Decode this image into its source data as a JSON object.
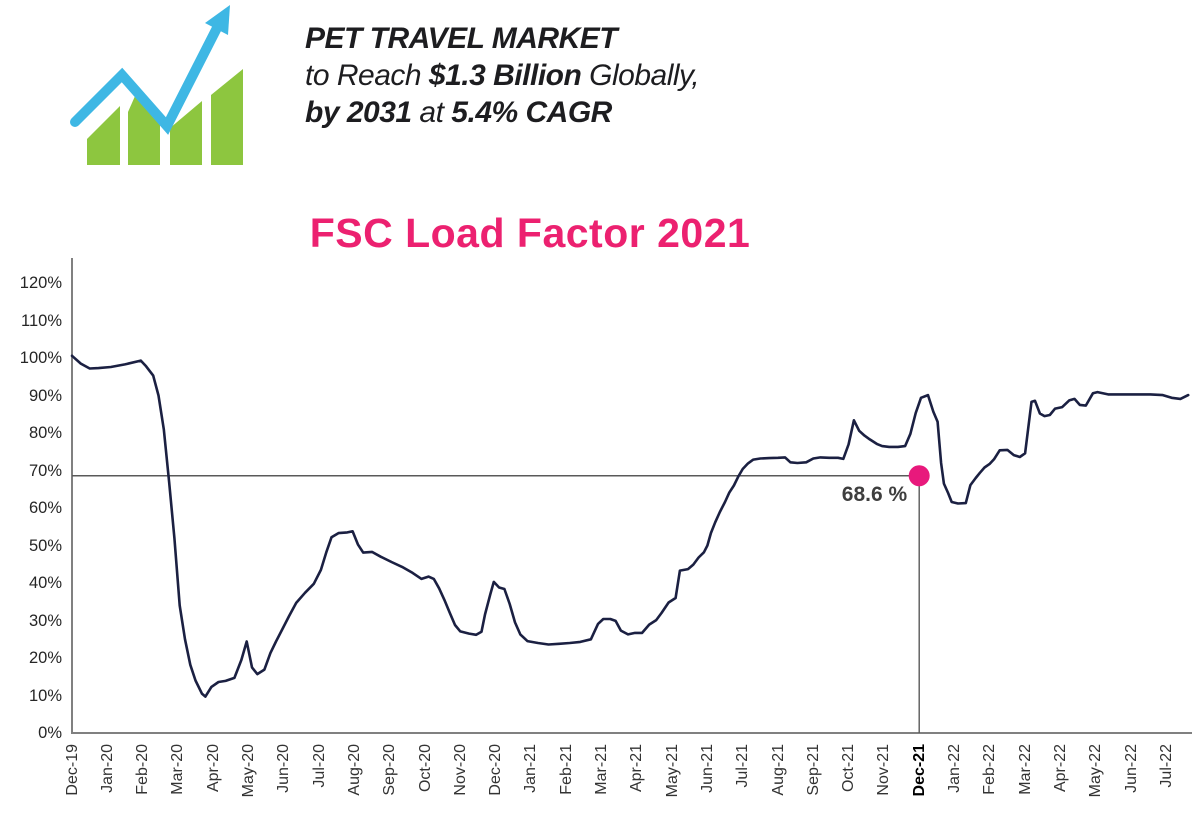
{
  "header": {
    "title_line1": "PET TRAVEL MARKET",
    "line2": {
      "pre": "to Reach ",
      "bold": "$1.3 Billion",
      "post": " Globally,"
    },
    "line3": {
      "bold1": "by 2031",
      "mid": " at ",
      "bold2": "5.4% CAGR"
    },
    "logo": {
      "bar_color": "#8dc63f",
      "arrow_color": "#3eb7e4"
    }
  },
  "chart": {
    "title": "FSC Load Factor 2021",
    "title_color": "#ec2170",
    "line_color": "#1b2042",
    "axis_color": "#808080",
    "ref_line_color": "#595959",
    "marker_color": "#e8197c"
  },
  "chart_data": {
    "type": "line",
    "title": "FSC Load Factor 2021",
    "ylim": [
      0,
      120
    ],
    "grid": "off",
    "y_ticks": [
      "0%",
      "10%",
      "20%",
      "30%",
      "40%",
      "50%",
      "60%",
      "70%",
      "80%",
      "90%",
      "100%",
      "110%",
      "120%"
    ],
    "x_labels": [
      "Dec-19",
      "Jan-20",
      "Feb-20",
      "Mar-20",
      "Apr-20",
      "May-20",
      "Jun-20",
      "Jul-20",
      "Aug-20",
      "Sep-20",
      "Oct-20",
      "Nov-20",
      "Dec-20",
      "Jan-21",
      "Feb-21",
      "Mar-21",
      "Apr-21",
      "May-21",
      "Jun-21",
      "Jul-21",
      "Aug-21",
      "Sep-21",
      "Oct-21",
      "Nov-21",
      "Dec-21",
      "Jan-22",
      "Feb-22",
      "Mar-22",
      "Apr-22",
      "May-22",
      "Jun-22",
      "Jul-22"
    ],
    "bold_x_label": "Dec-21",
    "annotation": {
      "x_label": "Dec-21",
      "value": 68.6,
      "text": "68.6 %"
    },
    "series": [
      {
        "name": "FSC Load Factor",
        "x_unit": "months since Dec-19",
        "y_unit": "percent",
        "points": [
          [
            0,
            100.6
          ],
          [
            0.25,
            98.5
          ],
          [
            0.5,
            97.2
          ],
          [
            0.75,
            97.3
          ],
          [
            1.1,
            97.6
          ],
          [
            1.5,
            98.3
          ],
          [
            1.95,
            99.3
          ],
          [
            2.1,
            97.8
          ],
          [
            2.3,
            95.3
          ],
          [
            2.45,
            90
          ],
          [
            2.6,
            81
          ],
          [
            2.75,
            67
          ],
          [
            2.9,
            52
          ],
          [
            3.05,
            34
          ],
          [
            3.2,
            25
          ],
          [
            3.35,
            18.2
          ],
          [
            3.5,
            14
          ],
          [
            3.68,
            10.5
          ],
          [
            3.78,
            9.7
          ],
          [
            3.95,
            12.3
          ],
          [
            4.15,
            13.6
          ],
          [
            4.35,
            13.9
          ],
          [
            4.6,
            14.7
          ],
          [
            4.8,
            19.5
          ],
          [
            4.95,
            24.4
          ],
          [
            5.1,
            17.5
          ],
          [
            5.25,
            15.7
          ],
          [
            5.45,
            16.9
          ],
          [
            5.62,
            21.3
          ],
          [
            5.78,
            24.4
          ],
          [
            5.95,
            27.5
          ],
          [
            6.15,
            31.2
          ],
          [
            6.35,
            34.7
          ],
          [
            6.6,
            37.4
          ],
          [
            6.85,
            39.8
          ],
          [
            7.05,
            43.5
          ],
          [
            7.2,
            48.1
          ],
          [
            7.35,
            52.2
          ],
          [
            7.55,
            53.3
          ],
          [
            7.8,
            53.5
          ],
          [
            7.95,
            53.8
          ],
          [
            8.1,
            50.3
          ],
          [
            8.25,
            48.1
          ],
          [
            8.5,
            48.3
          ],
          [
            8.75,
            47
          ],
          [
            9.05,
            45.6
          ],
          [
            9.35,
            44.3
          ],
          [
            9.65,
            42.7
          ],
          [
            9.9,
            41.1
          ],
          [
            10.1,
            41.7
          ],
          [
            10.25,
            41.1
          ],
          [
            10.4,
            38.6
          ],
          [
            10.55,
            35.5
          ],
          [
            10.7,
            32.1
          ],
          [
            10.85,
            28.8
          ],
          [
            11,
            27.1
          ],
          [
            11.25,
            26.5
          ],
          [
            11.45,
            26.2
          ],
          [
            11.6,
            27
          ],
          [
            11.7,
            31.6
          ],
          [
            11.85,
            37
          ],
          [
            11.95,
            40.3
          ],
          [
            12.1,
            38.8
          ],
          [
            12.25,
            38.4
          ],
          [
            12.4,
            34.4
          ],
          [
            12.55,
            29.5
          ],
          [
            12.7,
            26.3
          ],
          [
            12.9,
            24.5
          ],
          [
            13.2,
            24
          ],
          [
            13.5,
            23.6
          ],
          [
            13.8,
            23.8
          ],
          [
            14.1,
            24
          ],
          [
            14.4,
            24.3
          ],
          [
            14.7,
            25
          ],
          [
            14.9,
            29.1
          ],
          [
            15.05,
            30.4
          ],
          [
            15.25,
            30.4
          ],
          [
            15.4,
            29.9
          ],
          [
            15.55,
            27.3
          ],
          [
            15.75,
            26.3
          ],
          [
            15.95,
            26.7
          ],
          [
            16.15,
            26.7
          ],
          [
            16.35,
            28.9
          ],
          [
            16.55,
            30.1
          ],
          [
            16.7,
            32
          ],
          [
            16.9,
            34.8
          ],
          [
            17.1,
            36
          ],
          [
            17.22,
            43.3
          ],
          [
            17.45,
            43.7
          ],
          [
            17.6,
            44.9
          ],
          [
            17.75,
            46.8
          ],
          [
            17.9,
            48.2
          ],
          [
            18,
            50
          ],
          [
            18.1,
            53.3
          ],
          [
            18.22,
            56.2
          ],
          [
            18.35,
            58.9
          ],
          [
            18.5,
            61.6
          ],
          [
            18.62,
            64.1
          ],
          [
            18.75,
            66
          ],
          [
            18.87,
            68.3
          ],
          [
            19,
            70.4
          ],
          [
            19.15,
            71.9
          ],
          [
            19.3,
            72.9
          ],
          [
            19.5,
            73.2
          ],
          [
            19.75,
            73.3
          ],
          [
            20,
            73.4
          ],
          [
            20.2,
            73.5
          ],
          [
            20.35,
            72.2
          ],
          [
            20.55,
            72
          ],
          [
            20.8,
            72.2
          ],
          [
            21,
            73.2
          ],
          [
            21.2,
            73.5
          ],
          [
            21.45,
            73.4
          ],
          [
            21.7,
            73.4
          ],
          [
            21.85,
            73.1
          ],
          [
            22,
            77
          ],
          [
            22.15,
            83.4
          ],
          [
            22.3,
            80.6
          ],
          [
            22.45,
            79.3
          ],
          [
            22.6,
            78.3
          ],
          [
            22.8,
            77.1
          ],
          [
            22.95,
            76.5
          ],
          [
            23.15,
            76.3
          ],
          [
            23.4,
            76.3
          ],
          [
            23.6,
            76.5
          ],
          [
            23.75,
            79.8
          ],
          [
            23.9,
            85.3
          ],
          [
            24.05,
            89.4
          ],
          [
            24.25,
            90.1
          ],
          [
            24.4,
            85.7
          ],
          [
            24.52,
            83
          ],
          [
            24.62,
            72
          ],
          [
            24.7,
            66.5
          ],
          [
            24.82,
            64
          ],
          [
            24.92,
            61.6
          ],
          [
            25.1,
            61.2
          ],
          [
            25.32,
            61.3
          ],
          [
            25.45,
            66.1
          ],
          [
            25.6,
            68
          ],
          [
            25.72,
            69.4
          ],
          [
            25.85,
            70.8
          ],
          [
            26,
            71.8
          ],
          [
            26.12,
            73
          ],
          [
            26.28,
            75.4
          ],
          [
            26.5,
            75.5
          ],
          [
            26.68,
            74.1
          ],
          [
            26.85,
            73.6
          ],
          [
            27,
            74.6
          ],
          [
            27.18,
            88.3
          ],
          [
            27.28,
            88.6
          ],
          [
            27.42,
            85.2
          ],
          [
            27.55,
            84.5
          ],
          [
            27.7,
            84.8
          ],
          [
            27.85,
            86.5
          ],
          [
            28.05,
            86.9
          ],
          [
            28.25,
            88.7
          ],
          [
            28.4,
            89.1
          ],
          [
            28.55,
            87.5
          ],
          [
            28.72,
            87.3
          ],
          [
            28.92,
            90.6
          ],
          [
            29.05,
            90.9
          ],
          [
            29.35,
            90.3
          ],
          [
            29.75,
            90.3
          ],
          [
            30.15,
            90.3
          ],
          [
            30.55,
            90.3
          ],
          [
            30.9,
            90.1
          ],
          [
            31.15,
            89.4
          ],
          [
            31.4,
            89.1
          ],
          [
            31.62,
            90.1
          ]
        ]
      }
    ]
  }
}
